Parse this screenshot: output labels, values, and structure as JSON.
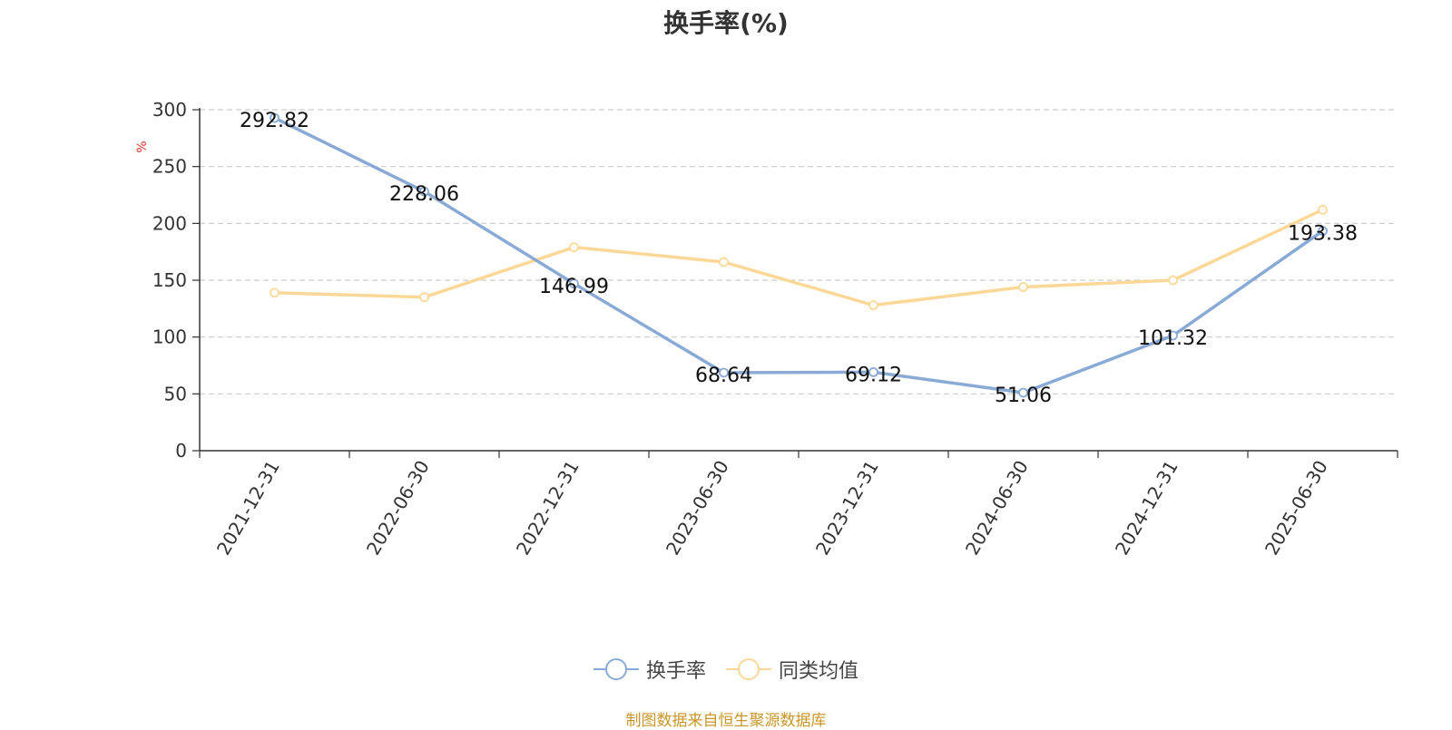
{
  "title": "换手率(%)",
  "source": "制图数据来自恒生聚源数据库",
  "chart_data": {
    "type": "line",
    "title": "换手率(%)",
    "ylabel": "%",
    "xlabel": "",
    "ylim": [
      0,
      300
    ],
    "yticks": [
      0,
      50,
      100,
      150,
      200,
      250,
      300
    ],
    "grid": true,
    "legend_position": "bottom-center",
    "categories": [
      "2021-12-31",
      "2022-06-30",
      "2022-12-31",
      "2023-06-30",
      "2023-12-31",
      "2024-06-30",
      "2024-12-31",
      "2025-06-30"
    ],
    "series": [
      {
        "name": "换手率",
        "color": "#8aaad6",
        "values": [
          292.82,
          228.06,
          146.99,
          68.64,
          69.12,
          51.06,
          101.32,
          193.38
        ],
        "labels": [
          "292.82",
          "228.06",
          "146.99",
          "68.64",
          "69.12",
          "51.06",
          "101.32",
          "193.38"
        ]
      },
      {
        "name": "同类均值",
        "color": "#fcd898",
        "values": [
          139,
          135,
          179,
          166,
          128,
          144,
          150,
          212
        ]
      }
    ]
  }
}
